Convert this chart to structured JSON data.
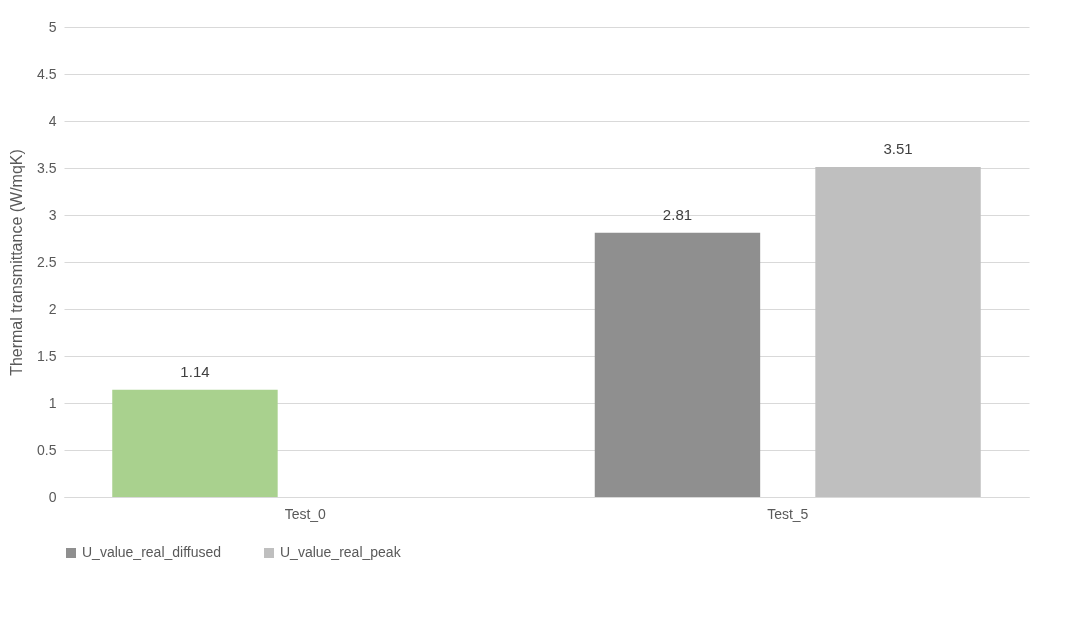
{
  "chart_data": {
    "type": "bar",
    "ylabel": "Thermal transmittance (W/mqK)",
    "categories": [
      "Test_0",
      "Test_5"
    ],
    "series": [
      {
        "name": "U_value_real_diffused",
        "color": "#8f8f8f",
        "colors": [
          "#a9d18e",
          "#8f8f8f"
        ],
        "values": [
          1.14,
          2.81
        ]
      },
      {
        "name": "U_value_real_peak",
        "color": "#bfbfbf",
        "values": [
          null,
          3.51
        ]
      }
    ],
    "ylim": [
      0,
      5
    ],
    "yticks": [
      0,
      0.5,
      1,
      1.5,
      2,
      2.5,
      3,
      3.5,
      4,
      4.5,
      5
    ],
    "grid": "y",
    "legend": "bottom",
    "data_labels": true
  }
}
